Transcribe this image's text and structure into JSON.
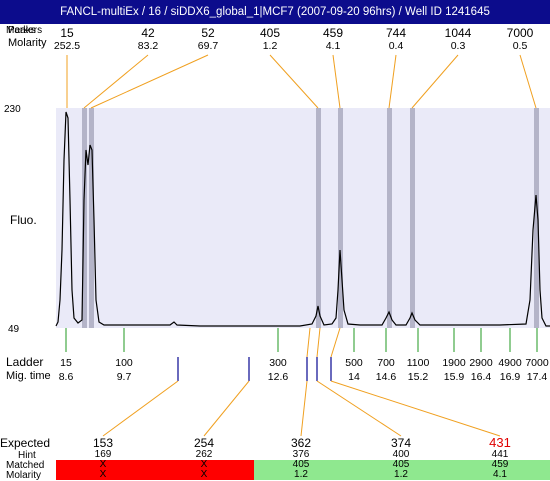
{
  "title": "FANCL-multiEx / 16 / siDDX6_global_1|MCF7 (2007-09-20 96hrs) / Well ID 1241645",
  "labels": {
    "peaks_overlap_a": "Peaks",
    "peaks_overlap_b": "Markers",
    "molarity": "Molarity",
    "fluo": "Fluo.",
    "y_top": "230",
    "y_bottom": "49",
    "ladder": "Ladder",
    "mig_time": "Mig. time",
    "expected": "Expected",
    "hint": "Hint",
    "matched": "Matched",
    "molarity_bottom": "Molarity"
  },
  "peaks": [
    {
      "size": "15",
      "molarity": "252.5"
    },
    {
      "size": "42",
      "molarity": "83.2"
    },
    {
      "size": "52",
      "molarity": "69.7"
    },
    {
      "size": "405",
      "molarity": "1.2"
    },
    {
      "size": "459",
      "molarity": "4.1"
    },
    {
      "size": "744",
      "molarity": "0.4"
    },
    {
      "size": "1044",
      "molarity": "0.3"
    },
    {
      "size": "7000",
      "molarity": "0.5"
    }
  ],
  "ladder": [
    {
      "size": "15",
      "time": "8.6"
    },
    {
      "size": "100",
      "time": "9.7"
    },
    {
      "size": "300",
      "time": "12.6"
    },
    {
      "size": "500",
      "time": "14"
    },
    {
      "size": "700",
      "time": "14.6"
    },
    {
      "size": "1100",
      "time": "15.2"
    },
    {
      "size": "1900",
      "time": "15.9"
    },
    {
      "size": "2900",
      "time": "16.4"
    },
    {
      "size": "4900",
      "time": "16.9"
    },
    {
      "size": "7000",
      "time": "17.4"
    }
  ],
  "expected": [
    {
      "value": "153",
      "hint": "169",
      "matched": "X",
      "molarity": "X",
      "status": "unmatched"
    },
    {
      "value": "254",
      "hint": "262",
      "matched": "X",
      "molarity": "X",
      "status": "unmatched"
    },
    {
      "value": "362",
      "hint": "376",
      "matched": "405",
      "molarity": "1.2",
      "status": "matched"
    },
    {
      "value": "374",
      "hint": "400",
      "matched": "405",
      "molarity": "1.2",
      "status": "matched"
    },
    {
      "value": "431",
      "hint": "441",
      "matched": "459",
      "molarity": "4.1",
      "status": "matched",
      "highlight": "#e00000"
    }
  ],
  "colors": {
    "title_bg": "#0c0c8c",
    "plot_bg": "#eaeaf8",
    "peak_band": "#b4b4c8",
    "connector": "#f0a020",
    "ladder_tick": "#229922",
    "expected_tick": "#1a1a99",
    "unmatched": "#ff0000",
    "matched": "#8fe88f"
  }
}
